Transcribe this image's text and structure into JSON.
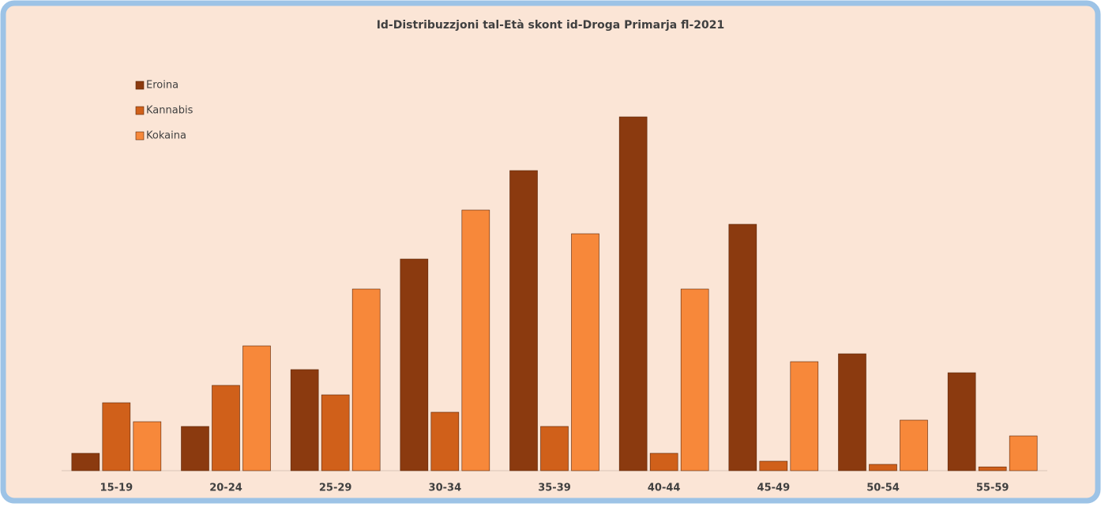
{
  "chart_data": {
    "type": "bar",
    "title": "Id-Distribuzzjoni tal-Età skont id-Droga Primarja fl-2021",
    "categories": [
      "15-19",
      "20-24",
      "25-29",
      "30-34",
      "35-39",
      "40-44",
      "45-49",
      "50-54",
      "55-59"
    ],
    "series": [
      {
        "name": "Eroina",
        "color": "#8b3a0f",
        "values": [
          5.5,
          14,
          32,
          67,
          95,
          112,
          78,
          37,
          31
        ]
      },
      {
        "name": "Kannabis",
        "color": "#d0601a",
        "values": [
          21.5,
          27,
          24,
          18.5,
          14,
          5.5,
          3,
          2,
          1.2
        ]
      },
      {
        "name": "Kokaina",
        "color": "#f7883a",
        "values": [
          15.5,
          39.5,
          57.5,
          82.5,
          75,
          57.5,
          34.5,
          16,
          11
        ]
      }
    ],
    "ylim": [
      0,
      115
    ],
    "legend": "upper left"
  }
}
